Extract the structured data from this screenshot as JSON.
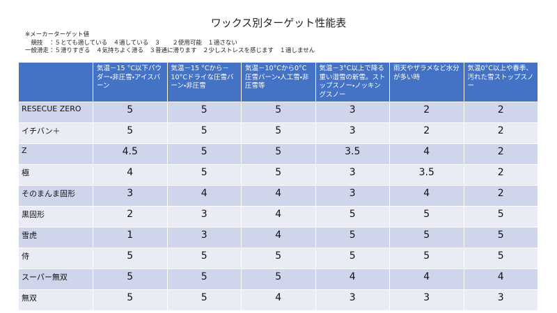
{
  "title": "ワックス別ターゲット性能表",
  "notes": [
    "※メーカーターゲット値",
    "　競技　：５とても適している　４適している　３　　２使用可能　１適さない",
    "一般滑走：５滑りすぎる　４気持ちよく滑る　３普通に滑ります　２少しストレスを感じます　１適しません"
  ],
  "table": {
    "header": [
      "",
      "気温－15 °C以下パウダー・非圧雪・アイスバーン",
      "気温－15 °Cから－10°Cドライな圧雪バーン・非圧雪",
      "気温－10°Cから0°C圧雪バーン・人工雪・非圧雪等",
      "気温－3°C以上で降る重い湿雪の新雪。ストップスノー・ノッキングスノー",
      "雨天やザラメなど水分が多い時",
      "気温0°C以上や春季、汚れた雪ストップスノー"
    ],
    "rows": [
      [
        "RESECUE ZERO",
        5,
        5,
        5,
        3,
        2,
        2
      ],
      [
        "イチバン＋",
        5,
        5,
        5,
        3,
        2,
        2
      ],
      [
        "Z",
        4.5,
        5,
        5,
        3.5,
        4,
        2
      ],
      [
        "極",
        4,
        5,
        5,
        3,
        3.5,
        2
      ],
      [
        "そのまんま固形",
        3,
        4,
        4,
        3,
        4,
        2
      ],
      [
        "黒固形",
        2,
        3,
        4,
        5,
        5,
        5
      ],
      [
        "雪虎",
        1,
        3,
        4,
        5,
        5,
        5
      ],
      [
        "侍",
        5,
        5,
        5,
        5,
        5,
        5
      ],
      [
        "スーパー無双",
        5,
        5,
        5,
        4,
        4,
        4
      ],
      [
        "無双",
        5,
        5,
        4,
        3,
        3,
        3
      ]
    ]
  }
}
